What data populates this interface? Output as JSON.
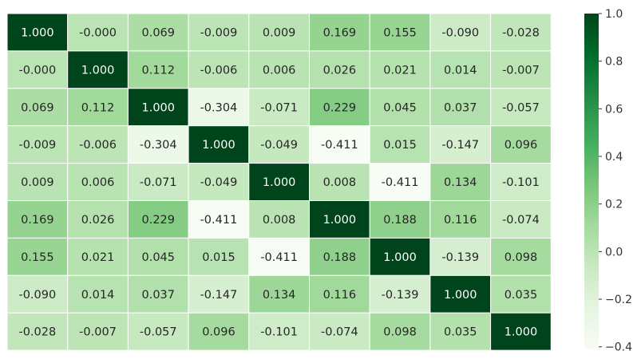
{
  "chart_data": {
    "type": "heatmap",
    "title": "",
    "xlabel": "",
    "ylabel": "",
    "colormap": "Greens",
    "colorbar": {
      "min": -0.411,
      "max": 1.0,
      "ticks": [
        1.0,
        0.8,
        0.6,
        0.4,
        0.2,
        0.0,
        -0.2,
        -0.4
      ],
      "tick_labels": [
        "1.0",
        "0.8",
        "0.6",
        "0.4",
        "0.2",
        "0.0",
        "−0.2",
        "−0.4"
      ]
    },
    "values": [
      [
        1.0,
        -0.0,
        0.069,
        -0.009,
        0.009,
        0.169,
        0.155,
        -0.09,
        -0.028
      ],
      [
        -0.0,
        1.0,
        0.112,
        -0.006,
        0.006,
        0.026,
        0.021,
        0.014,
        -0.007
      ],
      [
        0.069,
        0.112,
        1.0,
        -0.304,
        -0.071,
        0.229,
        0.045,
        0.037,
        -0.057
      ],
      [
        -0.009,
        -0.006,
        -0.304,
        1.0,
        -0.049,
        -0.411,
        0.015,
        -0.147,
        0.096
      ],
      [
        0.009,
        0.006,
        -0.071,
        -0.049,
        1.0,
        0.008,
        -0.411,
        0.134,
        -0.101
      ],
      [
        0.169,
        0.026,
        0.229,
        -0.411,
        0.008,
        1.0,
        0.188,
        0.116,
        -0.074
      ],
      [
        0.155,
        0.021,
        0.045,
        0.015,
        -0.411,
        0.188,
        1.0,
        -0.139,
        0.098
      ],
      [
        -0.09,
        0.014,
        0.037,
        -0.147,
        0.134,
        0.116,
        -0.139,
        1.0,
        0.035
      ],
      [
        -0.028,
        -0.007,
        -0.057,
        0.096,
        -0.101,
        -0.074,
        0.098,
        0.035,
        1.0
      ]
    ],
    "labels": [
      [
        "1.000",
        "-0.000",
        "0.069",
        "-0.009",
        "0.009",
        "0.169",
        "0.155",
        "-0.090",
        "-0.028"
      ],
      [
        "-0.000",
        "1.000",
        "0.112",
        "-0.006",
        "0.006",
        "0.026",
        "0.021",
        "0.014",
        "-0.007"
      ],
      [
        "0.069",
        "0.112",
        "1.000",
        "-0.304",
        "-0.071",
        "0.229",
        "0.045",
        "0.037",
        "-0.057"
      ],
      [
        "-0.009",
        "-0.006",
        "-0.304",
        "1.000",
        "-0.049",
        "-0.411",
        "0.015",
        "-0.147",
        "0.096"
      ],
      [
        "0.009",
        "0.006",
        "-0.071",
        "-0.049",
        "1.000",
        "0.008",
        "-0.411",
        "0.134",
        "-0.101"
      ],
      [
        "0.169",
        "0.026",
        "0.229",
        "-0.411",
        "0.008",
        "1.000",
        "0.188",
        "0.116",
        "-0.074"
      ],
      [
        "0.155",
        "0.021",
        "0.045",
        "0.015",
        "-0.411",
        "0.188",
        "1.000",
        "-0.139",
        "0.098"
      ],
      [
        "-0.090",
        "0.014",
        "0.037",
        "-0.147",
        "0.134",
        "0.116",
        "-0.139",
        "1.000",
        "0.035"
      ],
      [
        "-0.028",
        "-0.007",
        "-0.057",
        "0.096",
        "-0.101",
        "-0.074",
        "0.098",
        "0.035",
        "1.000"
      ]
    ],
    "colors": {
      "low": "#f7fcf5",
      "high": "#00441b",
      "text_dark": "#262626",
      "text_light": "#ffffff",
      "cell_border": "#ffffff"
    }
  }
}
